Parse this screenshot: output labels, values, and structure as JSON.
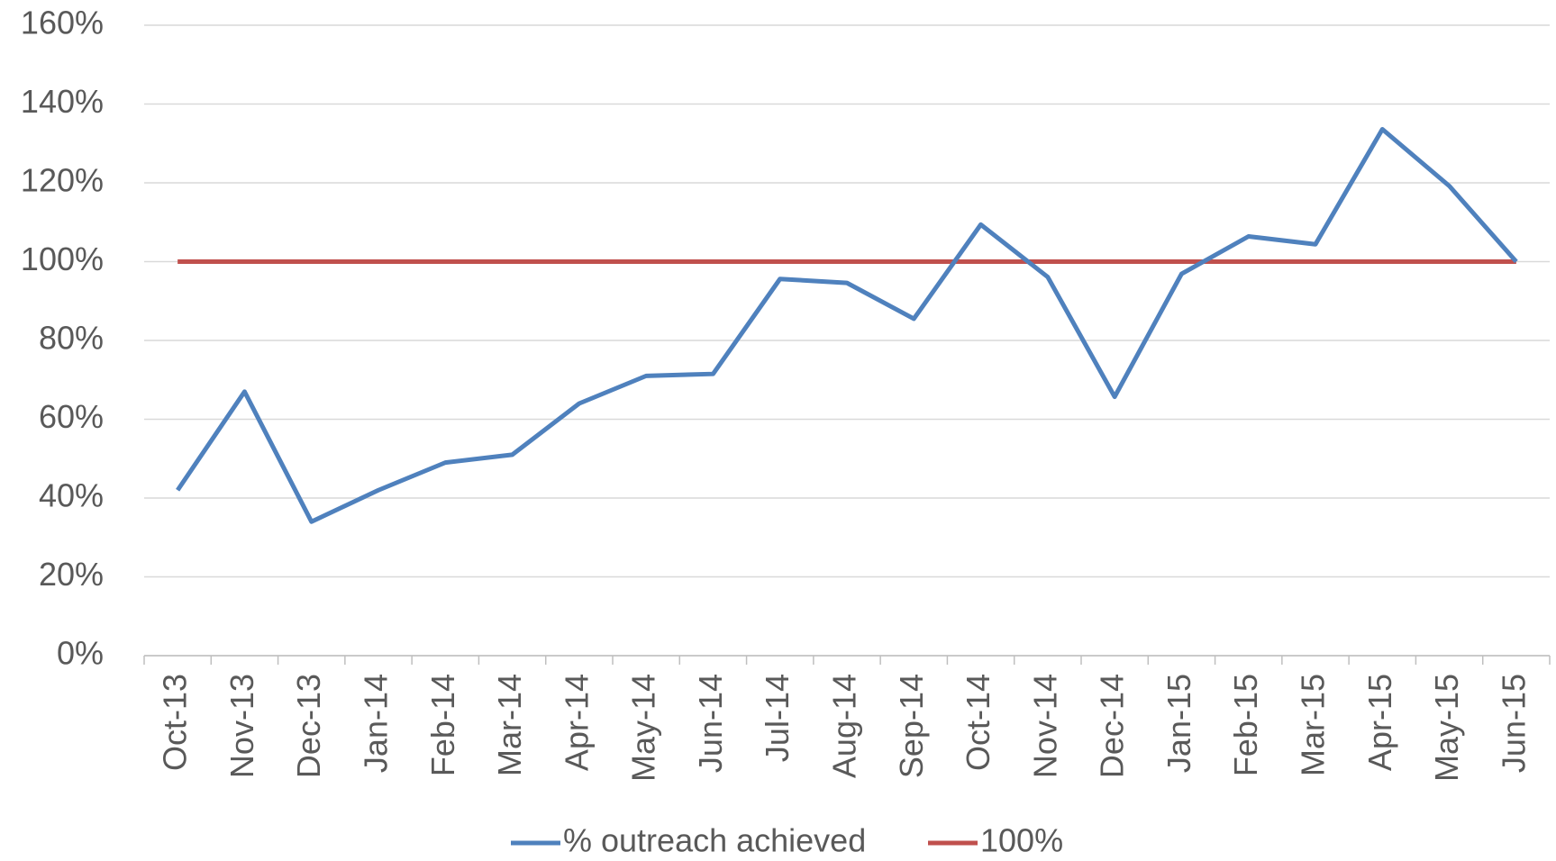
{
  "chart_data": {
    "type": "line",
    "categories": [
      "Oct-13",
      "Nov-13",
      "Dec-13",
      "Jan-14",
      "Feb-14",
      "Mar-14",
      "Apr-14",
      "May-14",
      "Jun-14",
      "Jul-14",
      "Aug-14",
      "Sep-14",
      "Oct-14",
      "Nov-14",
      "Dec-14",
      "Jan-15",
      "Feb-15",
      "Mar-15",
      "Apr-15",
      "May-15",
      "Jun-15"
    ],
    "series": [
      {
        "name": "% outreach achieved",
        "color": "#4f81bd",
        "values": [
          42,
          67,
          34,
          42,
          49,
          51,
          64,
          71,
          71.5,
          95.6,
          94.6,
          85.5,
          109.4,
          96.1,
          65.7,
          96.9,
          106.4,
          104.4,
          133.6,
          119.2,
          100
        ]
      },
      {
        "name": "100%",
        "color": "#c0504d",
        "values": [
          100,
          100,
          100,
          100,
          100,
          100,
          100,
          100,
          100,
          100,
          100,
          100,
          100,
          100,
          100,
          100,
          100,
          100,
          100,
          100,
          100
        ]
      }
    ],
    "ylim": [
      0,
      160
    ],
    "yticks": [
      {
        "value": 0,
        "label": "0%"
      },
      {
        "value": 20,
        "label": "20%"
      },
      {
        "value": 40,
        "label": "40%"
      },
      {
        "value": 60,
        "label": "60%"
      },
      {
        "value": 80,
        "label": "80%"
      },
      {
        "value": 100,
        "label": "100%"
      },
      {
        "value": 120,
        "label": "120%"
      },
      {
        "value": 140,
        "label": "140%"
      },
      {
        "value": 160,
        "label": "160%"
      }
    ],
    "grid": true,
    "legend": "bottom"
  }
}
